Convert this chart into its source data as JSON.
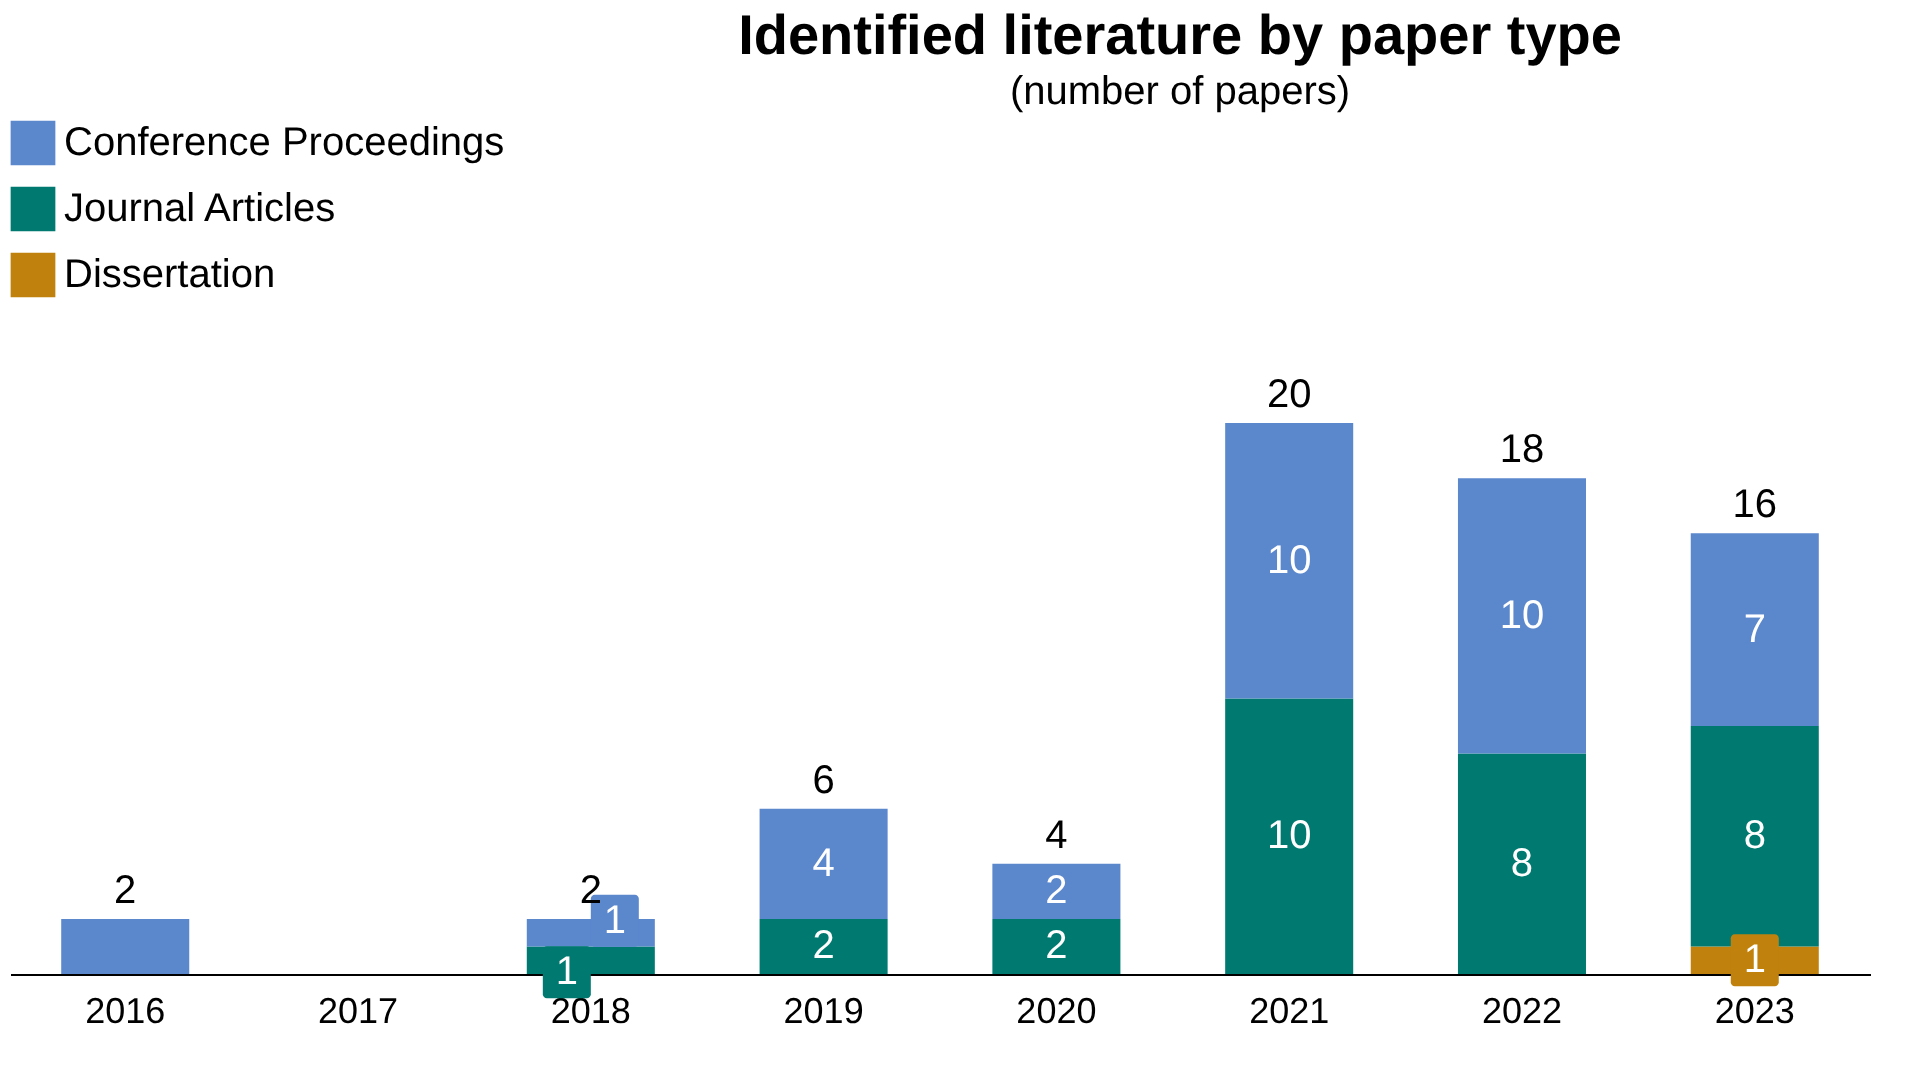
{
  "chart_data": {
    "type": "bar",
    "title": "Identified literature by paper type",
    "subtitle": "(number of papers)",
    "categories": [
      "2016",
      "2017",
      "2018",
      "2019",
      "2020",
      "2021",
      "2022",
      "2023"
    ],
    "stacked": true,
    "legend": "top left",
    "series": [
      {
        "name": "Dissertation",
        "color": "#c0820c",
        "values": [
          0,
          0,
          0,
          0,
          0,
          0,
          0,
          1
        ],
        "value_labels": [
          null,
          null,
          null,
          null,
          null,
          null,
          null,
          "1"
        ]
      },
      {
        "name": "Journal Articles",
        "color": "#007a70",
        "values": [
          0,
          0,
          1,
          2,
          2,
          10,
          8,
          8
        ],
        "value_labels": [
          null,
          null,
          "1",
          "2",
          "2",
          "10",
          "8",
          "8"
        ]
      },
      {
        "name": "Conference Proceedings",
        "color": "#5b87cd",
        "values": [
          2,
          0,
          1,
          4,
          2,
          10,
          10,
          7
        ],
        "value_labels": [
          null,
          null,
          "1",
          "4",
          "2",
          "10",
          "10",
          "7"
        ]
      }
    ],
    "totals": [
      "2",
      null,
      "2",
      "6",
      "4",
      "20",
      "18",
      "16"
    ]
  }
}
